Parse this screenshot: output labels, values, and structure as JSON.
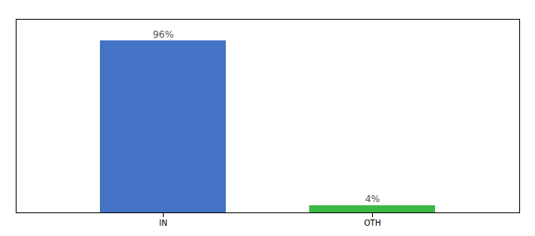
{
  "chart_data": {
    "type": "bar",
    "categories": [
      "IN",
      "OTH"
    ],
    "values": [
      96,
      4
    ],
    "value_labels": [
      "96%",
      "4%"
    ],
    "colors": [
      "#4472c4",
      "#3cb843"
    ],
    "ylim": [
      0,
      108
    ],
    "yticks": [],
    "tick_labels": "x",
    "data_labels": true,
    "grid": false
  }
}
